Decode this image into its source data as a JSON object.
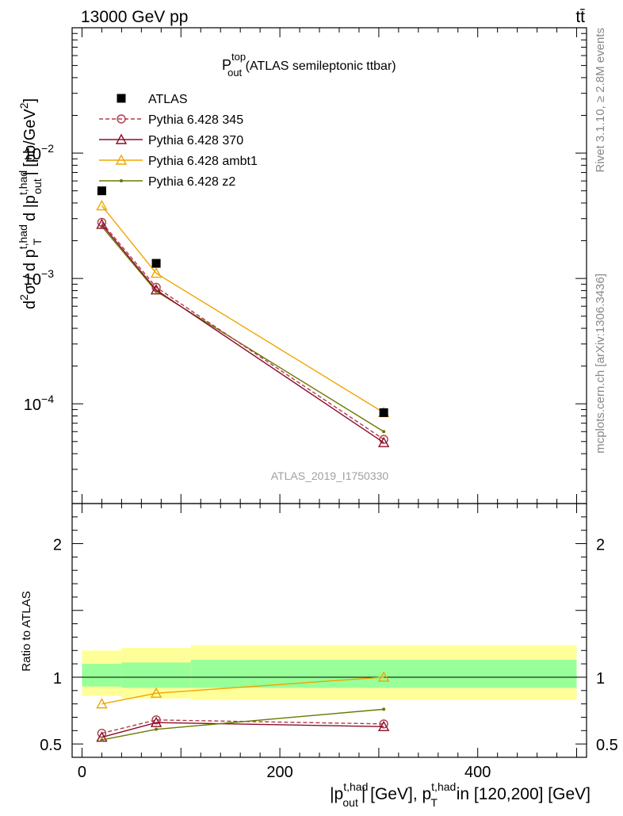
{
  "header": {
    "left": "13000 GeV pp",
    "right": "tt̄"
  },
  "side_labels": {
    "rivet": "Rivet 3.1.10, ≥ 2.8M events",
    "mcplots": "mcplots.cern.ch [arXiv:1306.3436]"
  },
  "chart_data": [
    {
      "type": "line",
      "panel": "main",
      "title": {
        "base": "P",
        "sup": "top",
        "sub": "out",
        "rest": " (ATLAS semileptonic ttbar)"
      },
      "watermark": "ATLAS_2019_I1750330",
      "ylabel": {
        "p1": "d",
        "p1sup": "2",
        "p2": "σ / d p",
        "p2sub": "T",
        "p2sup": "t,had",
        "p3": " d |p",
        "p3sub": "out",
        "p3sup": "t,had",
        "p4": "| [pb/GeV",
        "p4sup": "2",
        "p5": "]"
      },
      "yscale": "log",
      "ylim": [
        1.6e-05,
        0.1
      ],
      "xlim": [
        -10,
        510
      ],
      "y_ticks": [
        {
          "value": 0.0001,
          "base": "10",
          "exp": "−4"
        },
        {
          "value": 0.001,
          "base": "10",
          "exp": "−3"
        },
        {
          "value": 0.01,
          "base": "10",
          "exp": "−2"
        }
      ],
      "legend_position": "top-left",
      "series": [
        {
          "name": "ATLAS",
          "color": "#000000",
          "marker": "square",
          "line": "none",
          "x": [
            20,
            75,
            305
          ],
          "y": [
            0.005,
            0.00132,
            8.5e-05
          ]
        },
        {
          "name": "Pythia 6.428 345",
          "color": "#b03a48",
          "marker": "circle",
          "line": "dashed",
          "x": [
            20,
            75,
            305
          ],
          "y": [
            0.0028,
            0.00085,
            5.2e-05
          ]
        },
        {
          "name": "Pythia 6.428 370",
          "color": "#8b0e2a",
          "marker": "triangle",
          "line": "solid",
          "x": [
            20,
            75,
            305
          ],
          "y": [
            0.0027,
            0.00081,
            4.9e-05
          ]
        },
        {
          "name": "Pythia 6.428 ambt1",
          "color": "#f0a500",
          "marker": "triangle",
          "line": "solid",
          "x": [
            20,
            75,
            305
          ],
          "y": [
            0.0038,
            0.0011,
            8.5e-05
          ]
        },
        {
          "name": "Pythia 6.428 z2",
          "color": "#6b7800",
          "marker": "dot",
          "line": "solid",
          "x": [
            20,
            75,
            305
          ],
          "y": [
            0.0026,
            0.00079,
            6e-05
          ]
        }
      ]
    },
    {
      "type": "line",
      "panel": "ratio",
      "ylabel": "Ratio to ATLAS",
      "ylim": [
        0.4,
        2.3
      ],
      "xlim": [
        -10,
        510
      ],
      "xlabel": {
        "p1": "|p",
        "p1sup": "t,had",
        "p1sub": "out",
        "p2": "| [GeV], p",
        "p2sup": "t,had",
        "p2sub": "T",
        "p3": " in [120,200] [GeV]"
      },
      "x_ticks": [
        {
          "value": 0,
          "label": "0"
        },
        {
          "value": 200,
          "label": "200"
        },
        {
          "value": 400,
          "label": "400"
        }
      ],
      "y_ticks": [
        {
          "value": 0.5,
          "label": "0.5"
        },
        {
          "value": 1,
          "label": "1"
        },
        {
          "value": 2,
          "label": "2"
        }
      ],
      "bands": [
        {
          "x0": 0,
          "x1": 40,
          "yellow": [
            0.86,
            1.2
          ],
          "green": [
            0.93,
            1.1
          ]
        },
        {
          "x0": 40,
          "x1": 110,
          "yellow": [
            0.84,
            1.22
          ],
          "green": [
            0.92,
            1.11
          ]
        },
        {
          "x0": 110,
          "x1": 500,
          "yellow": [
            0.83,
            1.24
          ],
          "green": [
            0.92,
            1.13
          ]
        }
      ],
      "series": [
        {
          "name": "Pythia 6.428 345",
          "color": "#b03a48",
          "marker": "circle",
          "line": "dashed",
          "x": [
            20,
            75,
            305
          ],
          "y": [
            0.58,
            0.68,
            0.65
          ]
        },
        {
          "name": "Pythia 6.428 370",
          "color": "#8b0e2a",
          "marker": "triangle",
          "line": "solid",
          "x": [
            20,
            75,
            305
          ],
          "y": [
            0.55,
            0.66,
            0.63
          ]
        },
        {
          "name": "Pythia 6.428 ambt1",
          "color": "#f0a500",
          "marker": "triangle",
          "line": "solid",
          "x": [
            20,
            75,
            305
          ],
          "y": [
            0.8,
            0.88,
            1.0
          ]
        },
        {
          "name": "Pythia 6.428 z2",
          "color": "#6b7800",
          "marker": "dot",
          "line": "solid",
          "x": [
            20,
            75,
            305
          ],
          "y": [
            0.53,
            0.61,
            0.76
          ]
        }
      ]
    }
  ]
}
